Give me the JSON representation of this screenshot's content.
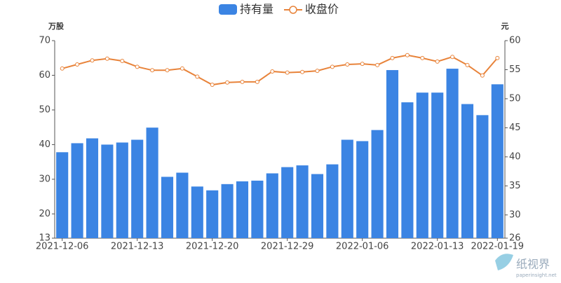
{
  "chart_data": {
    "type": "bar-line",
    "legend": [
      "持有量",
      "收盘价"
    ],
    "ylabel": "万股",
    "y2label": "元",
    "categories": [
      "2021-12-06",
      null,
      null,
      null,
      null,
      "2021-12-13",
      null,
      null,
      null,
      null,
      "2021-12-20",
      null,
      null,
      null,
      null,
      "2021-12-29",
      null,
      null,
      null,
      null,
      "2022-01-06",
      null,
      null,
      null,
      null,
      "2022-01-13",
      null,
      null,
      null,
      "2022-01-19"
    ],
    "series": [
      {
        "name": "持有量",
        "type": "bar",
        "color": "#3b84e3",
        "values": [
          37.8,
          40.4,
          41.8,
          40.0,
          40.6,
          41.4,
          44.9,
          30.7,
          31.9,
          27.9,
          26.8,
          28.6,
          29.4,
          29.6,
          31.7,
          33.5,
          34.0,
          31.5,
          34.3,
          41.4,
          41.0,
          44.2,
          61.5,
          52.2,
          55.0,
          55.0,
          61.9,
          51.7,
          48.5,
          57.4
        ]
      },
      {
        "name": "收盘价",
        "type": "line",
        "axis": "y2",
        "color": "#e8833a",
        "values": [
          55.2,
          55.9,
          56.6,
          56.9,
          56.5,
          55.5,
          54.9,
          54.9,
          55.2,
          53.8,
          52.4,
          52.8,
          52.9,
          52.9,
          54.7,
          54.5,
          54.6,
          54.8,
          55.5,
          55.9,
          56.0,
          55.8,
          57.0,
          57.5,
          57.0,
          56.4,
          57.2,
          55.8,
          54.0,
          57.0
        ]
      }
    ],
    "ylim": [
      13,
      70
    ],
    "yticks": [
      13,
      20,
      30,
      40,
      50,
      60,
      70
    ],
    "y2lim": [
      26,
      60
    ],
    "y2ticks": [
      26,
      30,
      35,
      40,
      45,
      50,
      55,
      60
    ],
    "grid": false,
    "watermark": {
      "name": "纸视界",
      "site": "paperinsight.net"
    }
  }
}
